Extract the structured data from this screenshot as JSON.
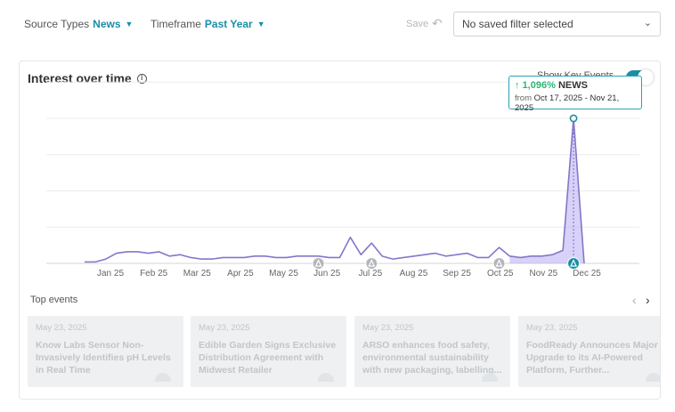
{
  "filters": {
    "source_types": {
      "label": "Source Types",
      "value": "News"
    },
    "timeframe": {
      "label": "Timeframe",
      "value": "Past Year"
    }
  },
  "save_label": "Save",
  "saved_filter": {
    "value": "No saved filter selected"
  },
  "card": {
    "title": "Interest over time",
    "show_key_events_label": "Show Key Events"
  },
  "tooltip": {
    "change": "↑ 1,096%",
    "series": "NEWS",
    "from_label": "from",
    "range": "Oct 17, 2025 - Nov 21, 2025"
  },
  "chart_data": {
    "type": "area",
    "x_labels": [
      "Jan 25",
      "Feb 25",
      "Mar 25",
      "Apr 25",
      "May 25",
      "Jun 25",
      "Jul 25",
      "Aug 25",
      "Sep 25",
      "Oct 25",
      "Nov 25",
      "Dec 25"
    ],
    "values": [
      1,
      1,
      3,
      7,
      8,
      8,
      7,
      8,
      5,
      6,
      4,
      3,
      3,
      4,
      4,
      4,
      5,
      5,
      4,
      4,
      5,
      5,
      5,
      4,
      4,
      18,
      6,
      14,
      5,
      3,
      4,
      5,
      6,
      7,
      5,
      6,
      7,
      4,
      4,
      11,
      5,
      4,
      5,
      5,
      6,
      9,
      100,
      0
    ],
    "highlight_start_index": 40,
    "peak_index": 46,
    "key_event_indices": [
      22,
      27,
      39,
      46
    ],
    "ylim": [
      0,
      100
    ]
  },
  "top_events": {
    "title": "Top events",
    "items": [
      {
        "date": "May 23, 2025",
        "title": "Know Labs Sensor Non-Invasively Identifies pH Levels in Real Time"
      },
      {
        "date": "May 23, 2025",
        "title": "Edible Garden Signs Exclusive Distribution Agreement with Midwest Retailer"
      },
      {
        "date": "May 23, 2025",
        "title": "ARSO enhances food safety, environmental sustainability with new packaging, labelling..."
      },
      {
        "date": "May 23, 2025",
        "title": "FoodReady Announces Major Upgrade to its AI-Powered Platform, Further..."
      }
    ]
  }
}
